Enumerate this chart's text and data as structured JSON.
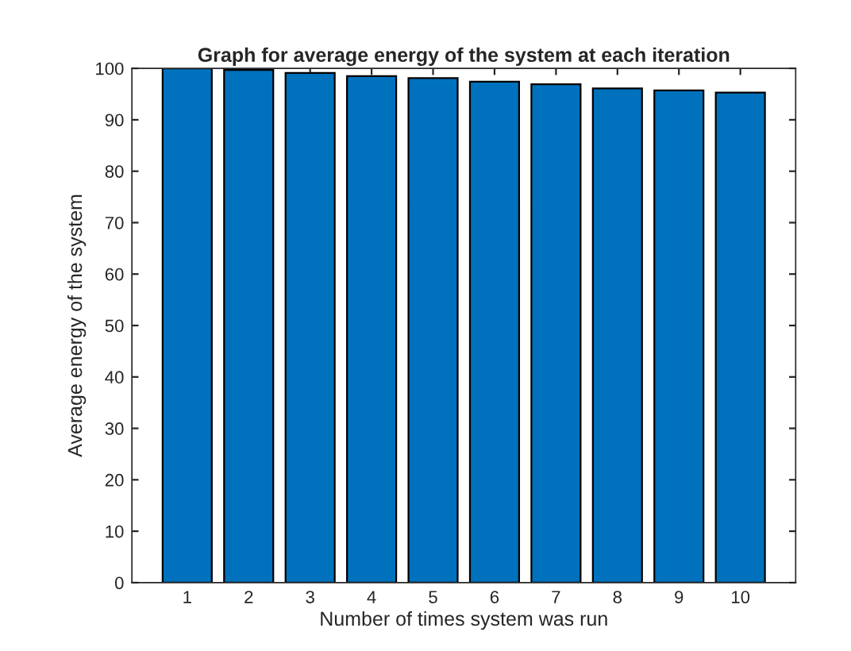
{
  "chart_data": {
    "type": "bar",
    "title": "Graph for average energy of the system at each iteration",
    "xlabel": "Number of times system was run",
    "ylabel": "Average energy of the system",
    "categories": [
      "1",
      "2",
      "3",
      "4",
      "5",
      "6",
      "7",
      "8",
      "9",
      "10"
    ],
    "values": [
      100,
      99.7,
      99.1,
      98.5,
      98.1,
      97.4,
      96.9,
      96.1,
      95.7,
      95.3
    ],
    "color": "#0072bd",
    "ylim": [
      0,
      100
    ],
    "yticks": [
      0,
      10,
      20,
      30,
      40,
      50,
      60,
      70,
      80,
      90,
      100
    ],
    "grid": false,
    "legend": false
  }
}
